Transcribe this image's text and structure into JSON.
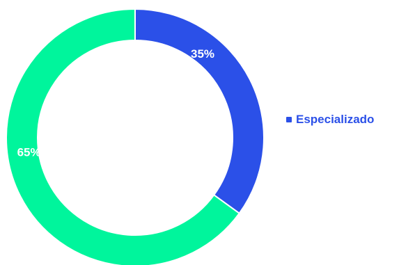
{
  "chart_data": {
    "type": "pie",
    "variant": "donut",
    "slices": [
      {
        "value": 35,
        "label": "35%",
        "color": "#2b50e8",
        "legend": "Especializado"
      },
      {
        "value": 65,
        "label": "65%",
        "color": "#00f59c",
        "legend": ""
      }
    ],
    "start_angle": "top",
    "direction": "clockwise",
    "legend_position": "right"
  },
  "legend": {
    "label": "Especializado",
    "color": "#2b50e8"
  }
}
